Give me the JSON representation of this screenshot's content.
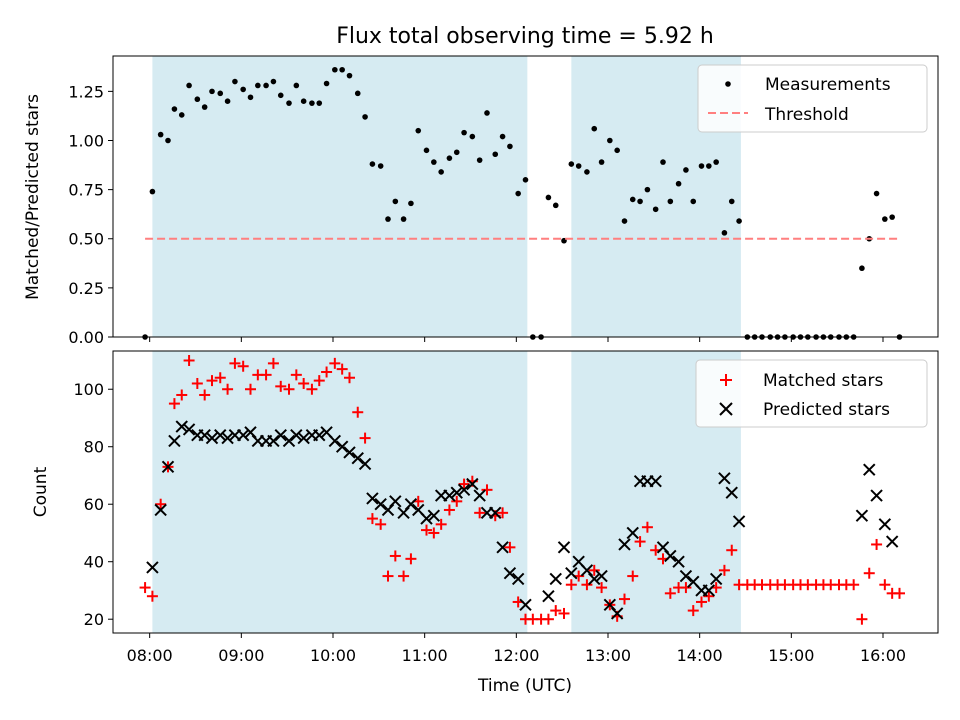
{
  "figure_title": "Flux total observing time = 5.92 h",
  "chart_data": [
    {
      "type": "scatter",
      "ylabel": "Matched/Predicted stars",
      "xlabel": "",
      "ylim": [
        0.0,
        1.43
      ],
      "yticks": [
        0.0,
        0.25,
        0.5,
        0.75,
        1.0,
        1.25
      ],
      "ytick_labels": [
        "0.00",
        "0.25",
        "0.50",
        "0.75",
        "1.00",
        "1.25"
      ],
      "legend_position": "upper right",
      "shaded_intervals_hours": [
        [
          8.03,
          12.12
        ],
        [
          12.6,
          14.45
        ]
      ],
      "shade_color": "#add8e6",
      "series": [
        {
          "name": "Measurements",
          "kind": "points",
          "color": "#000000",
          "x": [
            7.95,
            8.03,
            8.12,
            8.2,
            8.27,
            8.35,
            8.43,
            8.52,
            8.6,
            8.68,
            8.77,
            8.85,
            8.93,
            9.02,
            9.1,
            9.18,
            9.27,
            9.35,
            9.43,
            9.52,
            9.6,
            9.68,
            9.77,
            9.85,
            9.93,
            10.02,
            10.1,
            10.18,
            10.27,
            10.35,
            10.43,
            10.52,
            10.6,
            10.68,
            10.77,
            10.85,
            10.93,
            11.02,
            11.1,
            11.18,
            11.27,
            11.35,
            11.43,
            11.52,
            11.6,
            11.68,
            11.77,
            11.85,
            11.93,
            12.02,
            12.1,
            12.18,
            12.27,
            12.35,
            12.43,
            12.52,
            12.6,
            12.68,
            12.77,
            12.85,
            12.93,
            13.02,
            13.1,
            13.18,
            13.27,
            13.35,
            13.43,
            13.52,
            13.6,
            13.68,
            13.77,
            13.85,
            13.93,
            14.02,
            14.1,
            14.18,
            14.27,
            14.35,
            14.43,
            14.52,
            14.6,
            14.68,
            14.77,
            14.85,
            14.93,
            15.02,
            15.1,
            15.18,
            15.27,
            15.35,
            15.43,
            15.52,
            15.6,
            15.68,
            15.77,
            15.85,
            15.93,
            16.02,
            16.1,
            16.18
          ],
          "y": [
            0.0,
            0.74,
            1.03,
            1.0,
            1.16,
            1.13,
            1.28,
            1.21,
            1.17,
            1.25,
            1.24,
            1.2,
            1.3,
            1.26,
            1.22,
            1.28,
            1.28,
            1.3,
            1.23,
            1.19,
            1.28,
            1.2,
            1.19,
            1.19,
            1.29,
            1.36,
            1.36,
            1.33,
            1.24,
            1.12,
            0.88,
            0.87,
            0.6,
            0.69,
            0.6,
            0.68,
            1.05,
            0.95,
            0.89,
            0.84,
            0.91,
            0.94,
            1.04,
            1.02,
            0.9,
            1.14,
            0.93,
            1.02,
            0.97,
            0.73,
            0.8,
            0.0,
            0.0,
            0.71,
            0.67,
            0.49,
            0.88,
            0.87,
            0.84,
            1.06,
            0.89,
            1.0,
            0.95,
            0.59,
            0.7,
            0.69,
            0.75,
            0.65,
            0.89,
            0.69,
            0.78,
            0.85,
            0.69,
            0.87,
            0.87,
            0.89,
            0.53,
            0.69,
            0.59,
            0.0,
            0.0,
            0.0,
            0.0,
            0.0,
            0.0,
            0.0,
            0.0,
            0.0,
            0.0,
            0.0,
            0.0,
            0.0,
            0.0,
            0.0,
            0.35,
            0.5,
            0.73,
            0.6,
            0.61,
            0.0
          ]
        },
        {
          "name": "Threshold",
          "kind": "dashed-line",
          "color": "#ff7f7f",
          "x": [
            7.95,
            16.18
          ],
          "y": [
            0.5,
            0.5
          ]
        }
      ]
    },
    {
      "type": "scatter",
      "ylabel": "Count",
      "xlabel": "Time (UTC)",
      "ylim": [
        15.2,
        113.3
      ],
      "yticks": [
        20,
        40,
        60,
        80,
        100
      ],
      "ytick_labels": [
        "20",
        "40",
        "60",
        "80",
        "100"
      ],
      "xlim": [
        7.6,
        16.6
      ],
      "xticks": [
        8,
        9,
        10,
        11,
        12,
        13,
        14,
        15,
        16
      ],
      "xtick_labels": [
        "08:00",
        "09:00",
        "10:00",
        "11:00",
        "12:00",
        "13:00",
        "14:00",
        "15:00",
        "16:00"
      ],
      "legend_position": "upper right",
      "shaded_intervals_hours": [
        [
          8.03,
          12.12
        ],
        [
          12.6,
          14.45
        ]
      ],
      "shade_color": "#add8e6",
      "series": [
        {
          "name": "Matched stars",
          "kind": "plus",
          "color": "#ff0000",
          "x": [
            7.95,
            8.03,
            8.12,
            8.2,
            8.27,
            8.35,
            8.43,
            8.52,
            8.6,
            8.68,
            8.77,
            8.85,
            8.93,
            9.02,
            9.1,
            9.18,
            9.27,
            9.35,
            9.43,
            9.52,
            9.6,
            9.68,
            9.77,
            9.85,
            9.93,
            10.02,
            10.1,
            10.18,
            10.27,
            10.35,
            10.43,
            10.52,
            10.6,
            10.68,
            10.77,
            10.85,
            10.93,
            11.02,
            11.1,
            11.18,
            11.27,
            11.35,
            11.43,
            11.52,
            11.6,
            11.68,
            11.77,
            11.85,
            11.93,
            12.02,
            12.1,
            12.18,
            12.27,
            12.35,
            12.43,
            12.52,
            12.6,
            12.68,
            12.77,
            12.85,
            12.93,
            13.02,
            13.1,
            13.18,
            13.27,
            13.35,
            13.43,
            13.52,
            13.6,
            13.68,
            13.77,
            13.85,
            13.93,
            14.02,
            14.1,
            14.18,
            14.27,
            14.35,
            14.43,
            14.52,
            14.6,
            14.68,
            14.77,
            14.85,
            14.93,
            15.02,
            15.1,
            15.18,
            15.27,
            15.35,
            15.43,
            15.52,
            15.6,
            15.68,
            15.77,
            15.85,
            15.93,
            16.02,
            16.1,
            16.18
          ],
          "y": [
            31,
            28,
            60,
            73,
            95,
            98,
            110,
            102,
            98,
            103,
            104,
            100,
            109,
            108,
            100,
            105,
            105,
            109,
            101,
            100,
            105,
            102,
            100,
            103,
            106,
            109,
            107,
            104,
            92,
            83,
            55,
            53,
            35,
            42,
            35,
            41,
            61,
            51,
            50,
            53,
            58,
            61,
            67,
            68,
            57,
            65,
            56,
            57,
            45,
            26,
            20,
            20,
            20,
            20,
            23,
            22,
            32,
            35,
            32,
            37,
            31,
            25,
            21,
            27,
            35,
            47,
            52,
            44,
            41,
            29,
            31,
            31,
            23,
            26,
            28,
            31,
            37,
            44,
            32,
            32,
            32,
            32,
            32,
            32,
            32,
            32,
            32,
            32,
            32,
            32,
            32,
            32,
            32,
            32,
            20,
            36,
            46,
            32,
            29,
            29
          ]
        },
        {
          "name": "Predicted stars",
          "kind": "x",
          "color": "#000000",
          "x": [
            8.03,
            8.12,
            8.2,
            8.27,
            8.35,
            8.43,
            8.52,
            8.6,
            8.68,
            8.77,
            8.85,
            8.93,
            9.02,
            9.1,
            9.18,
            9.27,
            9.35,
            9.43,
            9.52,
            9.6,
            9.68,
            9.77,
            9.85,
            9.93,
            10.02,
            10.1,
            10.18,
            10.27,
            10.35,
            10.43,
            10.52,
            10.6,
            10.68,
            10.77,
            10.85,
            10.93,
            11.02,
            11.1,
            11.18,
            11.27,
            11.35,
            11.43,
            11.52,
            11.6,
            11.68,
            11.77,
            11.85,
            11.93,
            12.02,
            12.1,
            12.35,
            12.43,
            12.52,
            12.6,
            12.68,
            12.77,
            12.85,
            12.93,
            13.02,
            13.1,
            13.18,
            13.27,
            13.35,
            13.43,
            13.52,
            13.6,
            13.68,
            13.77,
            13.85,
            13.93,
            14.02,
            14.1,
            14.18,
            14.27,
            14.35,
            14.43,
            15.77,
            15.85,
            15.93,
            16.02,
            16.1
          ],
          "y": [
            38,
            58,
            73,
            82,
            87,
            86,
            84,
            84,
            83,
            84,
            83,
            84,
            84,
            85,
            82,
            82,
            82,
            84,
            82,
            84,
            83,
            84,
            84,
            85,
            82,
            80,
            78,
            76,
            74,
            62,
            60,
            58,
            61,
            57,
            60,
            58,
            55,
            56,
            63,
            63,
            64,
            65,
            67,
            63,
            57,
            57,
            45,
            36,
            34,
            25,
            28,
            34,
            45,
            36,
            40,
            37,
            34,
            35,
            25,
            22,
            46,
            50,
            68,
            68,
            68,
            45,
            42,
            40,
            35,
            33,
            30,
            30,
            34,
            69,
            64,
            54,
            56,
            72,
            63,
            53,
            47
          ]
        }
      ]
    }
  ]
}
